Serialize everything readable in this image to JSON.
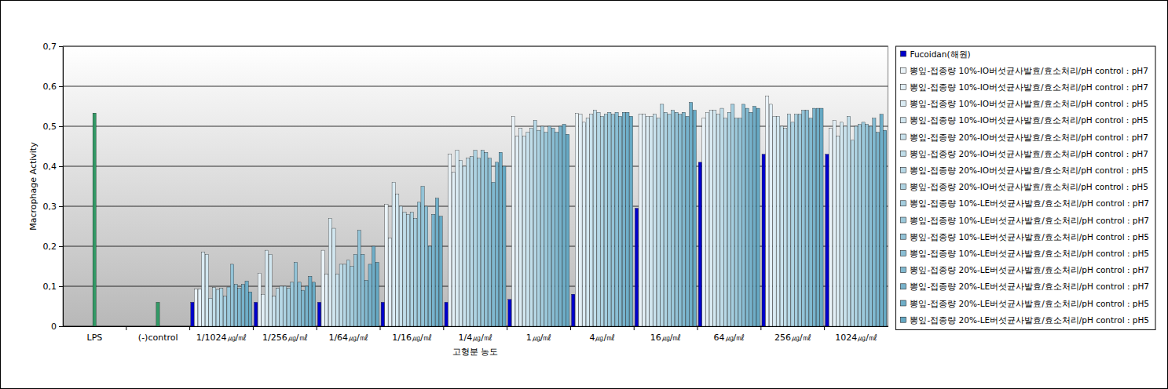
{
  "chart_data": {
    "type": "bar",
    "xlabel": "고형분 농도",
    "ylabel": "Macrophage Activity",
    "categories": [
      "LPS",
      "(-)control",
      "1/1024㎍/㎖",
      "1/256㎍/㎖",
      "1/64㎍/㎖",
      "1/16㎍/㎖",
      "1/4㎍/㎖",
      "1㎍/㎖",
      "4㎍/㎖",
      "16㎍/㎖",
      "64㎍/㎖",
      "256㎍/㎖",
      "1024㎍/㎖"
    ],
    "ylim": [
      0,
      0.7
    ],
    "yticks": [
      0,
      {
        "value": 0.1,
        "label": "0,1"
      },
      {
        "value": 0.2,
        "label": "0,2"
      },
      {
        "value": 0.3,
        "label": "0,3"
      },
      {
        "value": 0.4,
        "label": "0,4"
      },
      {
        "value": 0.5,
        "label": "0,5"
      },
      {
        "value": 0.6,
        "label": "0,6"
      },
      {
        "value": 0.7,
        "label": "0,7"
      }
    ],
    "grid": true,
    "legend": "right",
    "series": [
      {
        "color": "#339966",
        "values": [
          0.533,
          0.06,
          null,
          null,
          null,
          null,
          null,
          null,
          null,
          null,
          null,
          null,
          null
        ]
      },
      {
        "name": "Fucoidan(해원)",
        "color": "#0000cc",
        "values": [
          null,
          null,
          0.06,
          0.06,
          0.06,
          0.06,
          0.06,
          0.067,
          0.08,
          0.295,
          0.41,
          0.43,
          0.43
        ]
      },
      {
        "name": "뽕잎-접종량 10%-IO버섯균사발효/효소처리/pH control : pH7",
        "color": "#eaf3f8",
        "values": [
          null,
          null,
          0.093,
          0.133,
          0.19,
          0.305,
          0.43,
          0.525,
          0.533,
          0.53,
          0.52,
          0.575,
          0.495
        ]
      },
      {
        "name": "뽕잎-접종량 10%-IO버섯균사발효/효소처리/pH control : pH7",
        "color": "#e2eff6",
        "values": [
          null,
          null,
          0.093,
          0.08,
          0.13,
          0.22,
          0.385,
          0.475,
          0.53,
          0.53,
          0.535,
          0.555,
          0.515
        ]
      },
      {
        "name": "뽕잎-접종량 10%-IO버섯균사발효/효소처리/pH control : pH5",
        "color": "#daebf3",
        "values": [
          null,
          null,
          0.186,
          0.19,
          0.27,
          0.36,
          0.44,
          0.495,
          0.51,
          0.525,
          0.54,
          0.525,
          0.475
        ]
      },
      {
        "name": "뽕잎-접종량 10%-IO버섯균사발효/효소처리/pH control : pH5",
        "color": "#d2e7f0",
        "values": [
          null,
          null,
          0.18,
          0.18,
          0.245,
          0.33,
          0.415,
          0.475,
          0.52,
          0.525,
          0.54,
          0.525,
          0.51
        ]
      },
      {
        "name": "뽕잎-접종량 20%-IO버섯균사발효/효소처리/pH control : pH7",
        "color": "#c9e2ed",
        "values": [
          null,
          null,
          0.07,
          0.075,
          0.13,
          0.3,
          0.4,
          0.485,
          0.53,
          0.53,
          0.53,
          0.5,
          0.5
        ]
      },
      {
        "name": "뽕잎-접종량 20%-IO버섯균사발효/효소처리/pH control : pH7",
        "color": "#c0dde9",
        "values": [
          null,
          null,
          0.097,
          0.095,
          0.155,
          0.285,
          0.42,
          0.495,
          0.54,
          0.52,
          0.545,
          0.495,
          0.525
        ]
      },
      {
        "name": "뽕잎-접종량 20%-IO버섯균사발효/효소처리/pH control : pH5",
        "color": "#b7d8e6",
        "values": [
          null,
          null,
          0.092,
          0.1,
          0.155,
          0.28,
          0.425,
          0.515,
          0.535,
          0.555,
          0.52,
          0.53,
          0.465
        ]
      },
      {
        "name": "뽕잎-접종량 20%-IO버섯균사발효/효소처리/pH control : pH5",
        "color": "#aed3e2",
        "values": [
          null,
          null,
          0.095,
          0.1,
          0.165,
          0.285,
          0.44,
          0.49,
          0.525,
          0.535,
          0.535,
          0.51,
          0.5
        ]
      },
      {
        "name": "뽕잎-접종량 10%-LE버섯균사발효/효소처리/pH control : pH7",
        "color": "#a5cedf",
        "values": [
          null,
          null,
          0.075,
          0.095,
          0.15,
          0.27,
          0.42,
          0.5,
          0.53,
          0.53,
          0.555,
          0.53,
          0.505
        ]
      },
      {
        "name": "뽕잎-접종량 10%-LE버섯균사발효/효소처리/pH control : pH7",
        "color": "#9cc9db",
        "values": [
          null,
          null,
          0.098,
          0.11,
          0.18,
          0.31,
          0.44,
          0.485,
          0.535,
          0.54,
          0.52,
          0.53,
          0.51
        ]
      },
      {
        "name": "뽕잎-접종량 10%-LE버섯균사발효/효소처리/pH control : pH5",
        "color": "#93c3d7",
        "values": [
          null,
          null,
          0.155,
          0.16,
          0.24,
          0.35,
          0.435,
          0.5,
          0.53,
          0.535,
          0.52,
          0.54,
          0.505
        ]
      },
      {
        "name": "뽕잎-접종량 10%-LE버섯균사발효/효소처리/pH control : pH5",
        "color": "#8abed4",
        "values": [
          null,
          null,
          0.105,
          0.11,
          0.18,
          0.3,
          0.42,
          0.495,
          0.535,
          0.53,
          0.555,
          0.54,
          0.5
        ]
      },
      {
        "name": "뽕잎-접종량 20%-LE버섯균사발효/효소처리/pH control : pH7",
        "color": "#81b9d0",
        "values": [
          null,
          null,
          0.095,
          0.09,
          0.115,
          0.2,
          0.36,
          0.485,
          0.525,
          0.535,
          0.545,
          0.52,
          0.52
        ]
      },
      {
        "name": "뽕잎-접종량 20%-LE버섯균사발효/효소처리/pH control : pH7",
        "color": "#78b3cc",
        "values": [
          null,
          null,
          0.105,
          0.1,
          0.155,
          0.28,
          0.41,
          0.5,
          0.535,
          0.525,
          0.535,
          0.545,
          0.485
        ]
      },
      {
        "name": "뽕잎-접종량 20%-LE버섯균사발효/효소처리/pH control : pH5",
        "color": "#6faec8",
        "values": [
          null,
          null,
          0.113,
          0.125,
          0.2,
          0.32,
          0.435,
          0.505,
          0.535,
          0.56,
          0.55,
          0.545,
          0.53
        ]
      },
      {
        "name": "뽕잎-접종량 20%-LE버섯균사발효/효소처리/pH control : pH5",
        "color": "#66a9c4",
        "values": [
          null,
          null,
          0.086,
          0.11,
          0.16,
          0.275,
          0.4,
          0.48,
          0.525,
          0.54,
          0.545,
          0.545,
          0.49
        ]
      }
    ]
  }
}
